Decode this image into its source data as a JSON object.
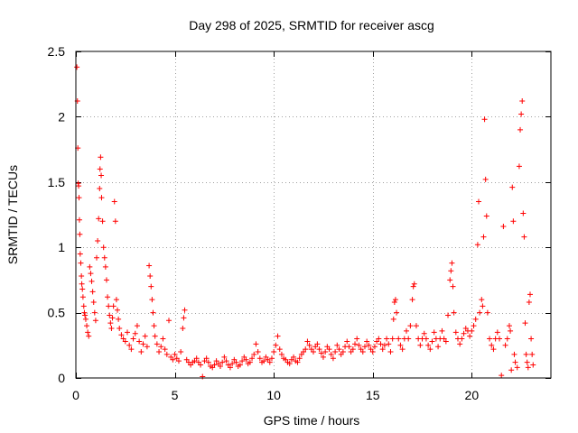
{
  "chart_data": {
    "type": "scatter",
    "title": "Day 298 of 2025, SRMTID for receiver ascg",
    "xlabel": "GPS time / hours",
    "ylabel": "SRMTID / TECUs",
    "xlim": [
      0,
      24
    ],
    "ylim": [
      0,
      2.5
    ],
    "x_ticks": [
      0,
      5,
      10,
      15,
      20
    ],
    "x_tick_labels": [
      "0",
      "5",
      "10",
      "15",
      "20"
    ],
    "y_ticks": [
      0,
      0.5,
      1,
      1.5,
      2,
      2.5
    ],
    "y_tick_labels": [
      "0",
      "0.5",
      "1",
      "1.5",
      "2",
      "2.5"
    ],
    "grid": true,
    "marker": "plus",
    "series_color": "#ff0000",
    "series": [
      {
        "name": "SRMTID",
        "points": [
          [
            0.05,
            2.38
          ],
          [
            0.08,
            2.12
          ],
          [
            0.1,
            1.76
          ],
          [
            0.12,
            1.49
          ],
          [
            0.14,
            1.47
          ],
          [
            0.16,
            1.38
          ],
          [
            0.18,
            1.21
          ],
          [
            0.2,
            1.1
          ],
          [
            0.22,
            0.95
          ],
          [
            0.25,
            0.88
          ],
          [
            0.28,
            0.78
          ],
          [
            0.3,
            0.72
          ],
          [
            0.33,
            0.68
          ],
          [
            0.36,
            0.62
          ],
          [
            0.4,
            0.55
          ],
          [
            0.43,
            0.5
          ],
          [
            0.46,
            0.48
          ],
          [
            0.5,
            0.45
          ],
          [
            0.55,
            0.4
          ],
          [
            0.6,
            0.35
          ],
          [
            0.65,
            0.32
          ],
          [
            0.7,
            0.85
          ],
          [
            0.75,
            0.8
          ],
          [
            0.8,
            0.74
          ],
          [
            0.85,
            0.66
          ],
          [
            0.9,
            0.58
          ],
          [
            0.95,
            0.5
          ],
          [
            1.0,
            0.44
          ],
          [
            1.05,
            0.92
          ],
          [
            1.1,
            1.05
          ],
          [
            1.15,
            1.22
          ],
          [
            1.2,
            1.45
          ],
          [
            1.22,
            1.6
          ],
          [
            1.25,
            1.69
          ],
          [
            1.28,
            1.55
          ],
          [
            1.3,
            1.38
          ],
          [
            1.35,
            1.2
          ],
          [
            1.4,
            1.0
          ],
          [
            1.45,
            0.92
          ],
          [
            1.5,
            0.85
          ],
          [
            1.55,
            0.75
          ],
          [
            1.6,
            0.62
          ],
          [
            1.65,
            0.55
          ],
          [
            1.7,
            0.48
          ],
          [
            1.75,
            0.42
          ],
          [
            1.8,
            0.38
          ],
          [
            1.85,
            0.46
          ],
          [
            1.9,
            0.55
          ],
          [
            1.95,
            1.35
          ],
          [
            2.0,
            1.2
          ],
          [
            2.05,
            0.6
          ],
          [
            2.1,
            0.52
          ],
          [
            2.15,
            0.45
          ],
          [
            2.2,
            0.38
          ],
          [
            2.3,
            0.33
          ],
          [
            2.4,
            0.3
          ],
          [
            2.5,
            0.28
          ],
          [
            2.6,
            0.35
          ],
          [
            2.7,
            0.25
          ],
          [
            2.8,
            0.22
          ],
          [
            2.9,
            0.3
          ],
          [
            3.0,
            0.34
          ],
          [
            3.1,
            0.4
          ],
          [
            3.2,
            0.28
          ],
          [
            3.3,
            0.2
          ],
          [
            3.4,
            0.26
          ],
          [
            3.5,
            0.32
          ],
          [
            3.6,
            0.24
          ],
          [
            3.7,
            0.86
          ],
          [
            3.75,
            0.78
          ],
          [
            3.8,
            0.7
          ],
          [
            3.85,
            0.6
          ],
          [
            3.9,
            0.5
          ],
          [
            3.95,
            0.4
          ],
          [
            4.0,
            0.32
          ],
          [
            4.1,
            0.26
          ],
          [
            4.2,
            0.2
          ],
          [
            4.3,
            0.24
          ],
          [
            4.4,
            0.3
          ],
          [
            4.5,
            0.22
          ],
          [
            4.6,
            0.18
          ],
          [
            4.7,
            0.44
          ],
          [
            4.8,
            0.16
          ],
          [
            4.9,
            0.14
          ],
          [
            5.0,
            0.18
          ],
          [
            5.1,
            0.15
          ],
          [
            5.2,
            0.13
          ],
          [
            5.3,
            0.2
          ],
          [
            5.4,
            0.38
          ],
          [
            5.45,
            0.46
          ],
          [
            5.5,
            0.52
          ],
          [
            5.6,
            0.14
          ],
          [
            5.7,
            0.12
          ],
          [
            5.8,
            0.1
          ],
          [
            5.9,
            0.12
          ],
          [
            6.0,
            0.13
          ],
          [
            6.1,
            0.15
          ],
          [
            6.2,
            0.12
          ],
          [
            6.3,
            0.1
          ],
          [
            6.4,
            0.01
          ],
          [
            6.5,
            0.13
          ],
          [
            6.6,
            0.15
          ],
          [
            6.7,
            0.12
          ],
          [
            6.8,
            0.09
          ],
          [
            6.9,
            0.08
          ],
          [
            7.0,
            0.1
          ],
          [
            7.1,
            0.13
          ],
          [
            7.2,
            0.11
          ],
          [
            7.3,
            0.09
          ],
          [
            7.4,
            0.12
          ],
          [
            7.5,
            0.16
          ],
          [
            7.6,
            0.13
          ],
          [
            7.7,
            0.1
          ],
          [
            7.8,
            0.08
          ],
          [
            7.9,
            0.11
          ],
          [
            8.0,
            0.14
          ],
          [
            8.1,
            0.12
          ],
          [
            8.2,
            0.09
          ],
          [
            8.3,
            0.1
          ],
          [
            8.4,
            0.13
          ],
          [
            8.5,
            0.16
          ],
          [
            8.6,
            0.14
          ],
          [
            8.7,
            0.11
          ],
          [
            8.8,
            0.12
          ],
          [
            8.9,
            0.15
          ],
          [
            9.0,
            0.18
          ],
          [
            9.1,
            0.26
          ],
          [
            9.2,
            0.2
          ],
          [
            9.3,
            0.15
          ],
          [
            9.4,
            0.12
          ],
          [
            9.5,
            0.13
          ],
          [
            9.6,
            0.16
          ],
          [
            9.7,
            0.14
          ],
          [
            9.8,
            0.12
          ],
          [
            9.9,
            0.15
          ],
          [
            10.0,
            0.2
          ],
          [
            10.1,
            0.25
          ],
          [
            10.2,
            0.32
          ],
          [
            10.3,
            0.22
          ],
          [
            10.4,
            0.18
          ],
          [
            10.5,
            0.15
          ],
          [
            10.6,
            0.14
          ],
          [
            10.7,
            0.12
          ],
          [
            10.8,
            0.11
          ],
          [
            10.9,
            0.14
          ],
          [
            11.0,
            0.16
          ],
          [
            11.1,
            0.13
          ],
          [
            11.2,
            0.12
          ],
          [
            11.3,
            0.15
          ],
          [
            11.4,
            0.18
          ],
          [
            11.5,
            0.2
          ],
          [
            11.6,
            0.22
          ],
          [
            11.7,
            0.28
          ],
          [
            11.8,
            0.25
          ],
          [
            11.9,
            0.22
          ],
          [
            12.0,
            0.2
          ],
          [
            12.1,
            0.24
          ],
          [
            12.2,
            0.26
          ],
          [
            12.3,
            0.22
          ],
          [
            12.4,
            0.19
          ],
          [
            12.5,
            0.16
          ],
          [
            12.6,
            0.2
          ],
          [
            12.7,
            0.24
          ],
          [
            12.8,
            0.22
          ],
          [
            12.9,
            0.18
          ],
          [
            13.0,
            0.15
          ],
          [
            13.1,
            0.2
          ],
          [
            13.2,
            0.25
          ],
          [
            13.3,
            0.22
          ],
          [
            13.4,
            0.18
          ],
          [
            13.5,
            0.2
          ],
          [
            13.6,
            0.24
          ],
          [
            13.7,
            0.28
          ],
          [
            13.8,
            0.24
          ],
          [
            13.9,
            0.2
          ],
          [
            14.0,
            0.22
          ],
          [
            14.1,
            0.26
          ],
          [
            14.2,
            0.3
          ],
          [
            14.3,
            0.25
          ],
          [
            14.4,
            0.22
          ],
          [
            14.5,
            0.2
          ],
          [
            14.6,
            0.24
          ],
          [
            14.7,
            0.28
          ],
          [
            14.8,
            0.25
          ],
          [
            14.9,
            0.22
          ],
          [
            15.0,
            0.2
          ],
          [
            15.1,
            0.24
          ],
          [
            15.2,
            0.28
          ],
          [
            15.3,
            0.3
          ],
          [
            15.4,
            0.26
          ],
          [
            15.5,
            0.22
          ],
          [
            15.6,
            0.25
          ],
          [
            15.7,
            0.3
          ],
          [
            15.8,
            0.26
          ],
          [
            15.9,
            0.2
          ],
          [
            16.0,
            0.3
          ],
          [
            16.05,
            0.45
          ],
          [
            16.1,
            0.58
          ],
          [
            16.15,
            0.6
          ],
          [
            16.2,
            0.5
          ],
          [
            16.3,
            0.3
          ],
          [
            16.4,
            0.25
          ],
          [
            16.5,
            0.22
          ],
          [
            16.6,
            0.3
          ],
          [
            16.7,
            0.36
          ],
          [
            16.8,
            0.3
          ],
          [
            16.9,
            0.4
          ],
          [
            17.0,
            0.6
          ],
          [
            17.05,
            0.7
          ],
          [
            17.1,
            0.72
          ],
          [
            17.2,
            0.4
          ],
          [
            17.3,
            0.3
          ],
          [
            17.4,
            0.25
          ],
          [
            17.5,
            0.3
          ],
          [
            17.6,
            0.34
          ],
          [
            17.7,
            0.3
          ],
          [
            17.8,
            0.25
          ],
          [
            17.9,
            0.22
          ],
          [
            18.0,
            0.28
          ],
          [
            18.1,
            0.35
          ],
          [
            18.2,
            0.3
          ],
          [
            18.3,
            0.24
          ],
          [
            18.4,
            0.3
          ],
          [
            18.5,
            0.36
          ],
          [
            18.6,
            0.3
          ],
          [
            18.7,
            0.28
          ],
          [
            18.8,
            0.48
          ],
          [
            18.9,
            0.75
          ],
          [
            18.95,
            0.82
          ],
          [
            19.0,
            0.88
          ],
          [
            19.05,
            0.7
          ],
          [
            19.1,
            0.5
          ],
          [
            19.2,
            0.35
          ],
          [
            19.3,
            0.3
          ],
          [
            19.4,
            0.26
          ],
          [
            19.5,
            0.3
          ],
          [
            19.6,
            0.34
          ],
          [
            19.7,
            0.38
          ],
          [
            19.8,
            0.36
          ],
          [
            19.9,
            0.32
          ],
          [
            20.0,
            0.36
          ],
          [
            20.1,
            0.4
          ],
          [
            20.2,
            0.45
          ],
          [
            20.3,
            1.02
          ],
          [
            20.35,
            1.35
          ],
          [
            20.4,
            0.5
          ],
          [
            20.5,
            0.6
          ],
          [
            20.55,
            0.55
          ],
          [
            20.6,
            1.08
          ],
          [
            20.65,
            1.98
          ],
          [
            20.7,
            1.52
          ],
          [
            20.75,
            1.24
          ],
          [
            20.8,
            0.5
          ],
          [
            20.9,
            0.3
          ],
          [
            21.0,
            0.25
          ],
          [
            21.1,
            0.22
          ],
          [
            21.2,
            0.3
          ],
          [
            21.3,
            0.35
          ],
          [
            21.4,
            0.3
          ],
          [
            21.5,
            0.02
          ],
          [
            21.6,
            1.16
          ],
          [
            21.7,
            0.25
          ],
          [
            21.8,
            0.3
          ],
          [
            21.9,
            0.4
          ],
          [
            21.95,
            0.36
          ],
          [
            22.0,
            0.06
          ],
          [
            22.05,
            1.46
          ],
          [
            22.1,
            1.2
          ],
          [
            22.15,
            0.18
          ],
          [
            22.2,
            0.12
          ],
          [
            22.3,
            0.08
          ],
          [
            22.4,
            1.62
          ],
          [
            22.45,
            1.9
          ],
          [
            22.5,
            2.02
          ],
          [
            22.55,
            2.12
          ],
          [
            22.6,
            1.26
          ],
          [
            22.65,
            1.08
          ],
          [
            22.7,
            0.42
          ],
          [
            22.75,
            0.18
          ],
          [
            22.8,
            0.12
          ],
          [
            22.85,
            0.08
          ],
          [
            22.9,
            0.58
          ],
          [
            22.95,
            0.64
          ],
          [
            23.0,
            0.3
          ],
          [
            23.05,
            0.18
          ],
          [
            23.1,
            0.1
          ]
        ]
      }
    ]
  }
}
